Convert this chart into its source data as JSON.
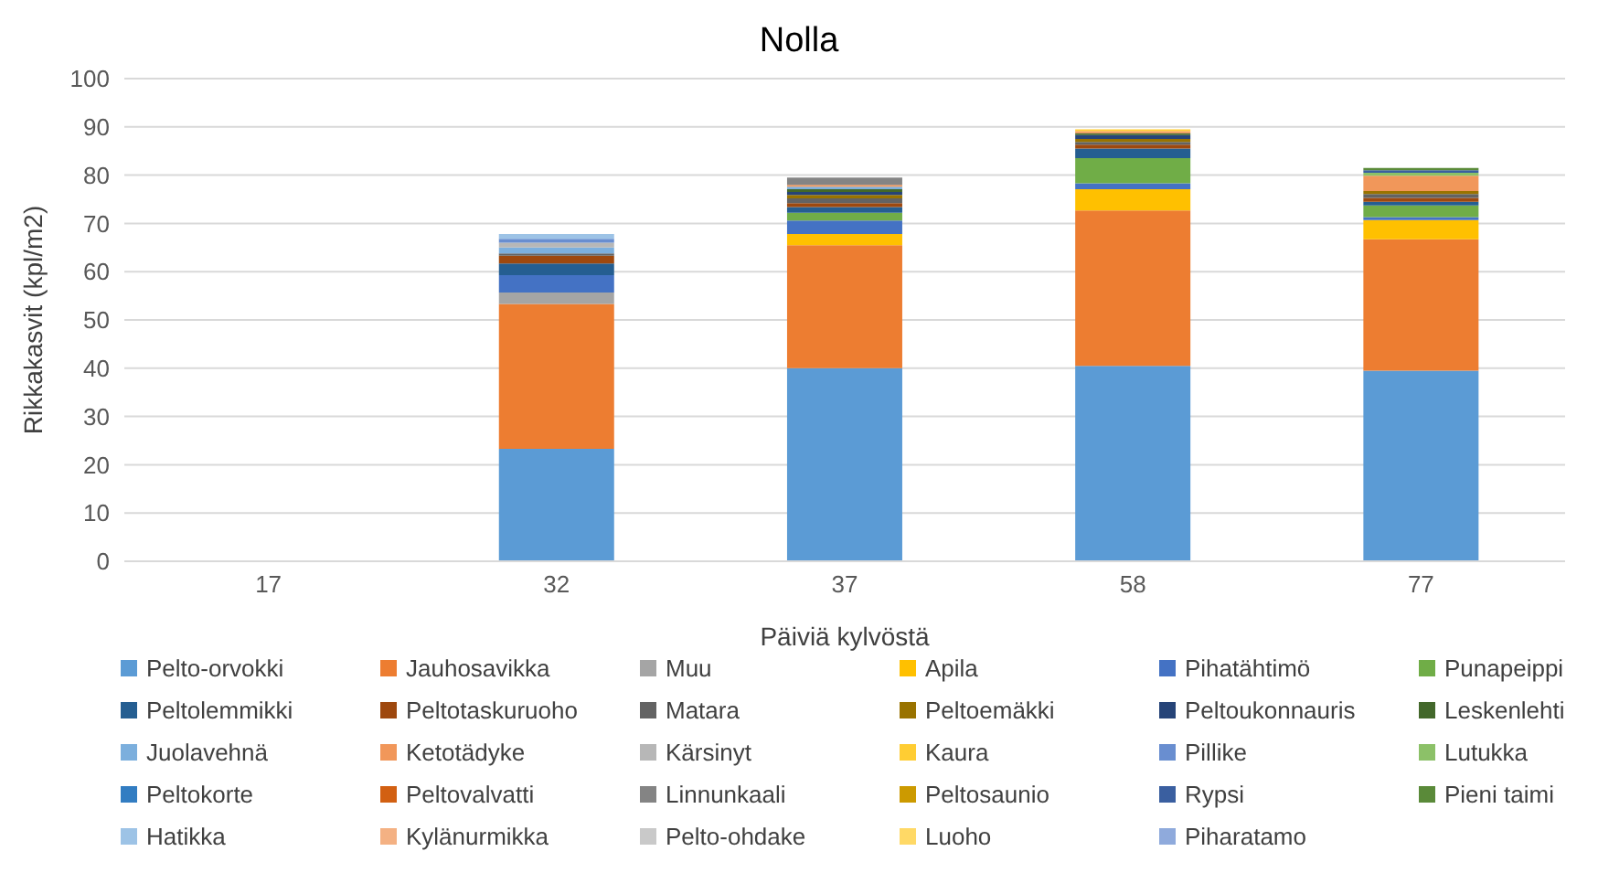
{
  "chart_data": {
    "type": "bar",
    "title": "Nolla",
    "xlabel": "Päiviä kylvöstä",
    "ylabel": "Rikkakasvit (kpl/m2)",
    "categories": [
      "17",
      "32",
      "37",
      "58",
      "77"
    ],
    "stacked": true,
    "ylim": [
      0,
      100
    ],
    "yticks": [
      0,
      10,
      20,
      30,
      40,
      50,
      60,
      70,
      80,
      90,
      100
    ],
    "grid": "y",
    "legend": "bottom",
    "series": [
      {
        "name": "Pelto-orvokki",
        "color": "#5b9bd5",
        "values": [
          null,
          23.3,
          40,
          40.5,
          39.5
        ]
      },
      {
        "name": "Jauhosavikka",
        "color": "#ed7d31",
        "values": [
          null,
          30,
          25.5,
          32.2,
          27.2
        ]
      },
      {
        "name": "Muu",
        "color": "#a5a5a5",
        "values": [
          null,
          2.4,
          null,
          null,
          null
        ]
      },
      {
        "name": "Apila",
        "color": "#ffc000",
        "values": [
          null,
          null,
          2.3,
          4.4,
          4
        ]
      },
      {
        "name": "Pihatähtimö",
        "color": "#4472c4",
        "values": [
          null,
          3.6,
          2.8,
          1.2,
          0.6
        ]
      },
      {
        "name": "Punapeippi",
        "color": "#70ad47",
        "values": [
          null,
          null,
          1.6,
          5.2,
          2.4
        ]
      },
      {
        "name": "Peltolemmikki",
        "color": "#255e91",
        "values": [
          null,
          2.4,
          1.2,
          2,
          0.8
        ]
      },
      {
        "name": "Peltotaskuruoho",
        "color": "#9e480e",
        "values": [
          null,
          1.6,
          0.8,
          0.8,
          0.8
        ]
      },
      {
        "name": "Matara",
        "color": "#636363",
        "values": [
          null,
          0.5,
          1,
          0.6,
          0.8
        ]
      },
      {
        "name": "Peltoemäkki",
        "color": "#997300",
        "values": [
          null,
          null,
          0.7,
          0.6,
          0.6
        ]
      },
      {
        "name": "Peltoukonnauris",
        "color": "#264478",
        "values": [
          null,
          null,
          0.6,
          0.8,
          null
        ]
      },
      {
        "name": "Leskenlehti",
        "color": "#43682b",
        "values": [
          null,
          null,
          0.6,
          0.4,
          null
        ]
      },
      {
        "name": "Juolavehnä",
        "color": "#7cafdd",
        "values": [
          null,
          1.2,
          0.5,
          null,
          null
        ]
      },
      {
        "name": "Ketotädyke",
        "color": "#f1975a",
        "values": [
          null,
          null,
          0.4,
          0.4,
          3.2
        ]
      },
      {
        "name": "Kärsinyt",
        "color": "#b7b7b7",
        "values": [
          null,
          1,
          null,
          null,
          null
        ]
      },
      {
        "name": "Kaura",
        "color": "#ffcd33",
        "values": [
          null,
          null,
          null,
          0.4,
          null
        ]
      },
      {
        "name": "Pillike",
        "color": "#698ed0",
        "values": [
          null,
          0.8,
          null,
          null,
          null
        ]
      },
      {
        "name": "Lutukka",
        "color": "#8cc168",
        "values": [
          null,
          null,
          null,
          null,
          0.6
        ]
      },
      {
        "name": "Peltokorte",
        "color": "#327dc2",
        "values": [
          null,
          null,
          null,
          null,
          null
        ]
      },
      {
        "name": "Peltovalvatti",
        "color": "#d26012",
        "values": [
          null,
          null,
          null,
          null,
          null
        ]
      },
      {
        "name": "Linnunkaali",
        "color": "#848484",
        "values": [
          null,
          null,
          1.5,
          null,
          null
        ]
      },
      {
        "name": "Peltosaunio",
        "color": "#cc9a00",
        "values": [
          null,
          null,
          null,
          null,
          null
        ]
      },
      {
        "name": "Rypsi",
        "color": "#3a5fa0",
        "values": [
          null,
          null,
          null,
          null,
          0.5
        ]
      },
      {
        "name": "Pieni taimi",
        "color": "#5a8a39",
        "values": [
          null,
          null,
          null,
          null,
          0.5
        ]
      },
      {
        "name": "Hatikka",
        "color": "#9dc3e6",
        "values": [
          null,
          1,
          null,
          null,
          null
        ]
      },
      {
        "name": "Kylänurmikka",
        "color": "#f4b183",
        "values": [
          null,
          null,
          null,
          null,
          null
        ]
      },
      {
        "name": "Pelto-ohdake",
        "color": "#c9c9c9",
        "values": [
          null,
          null,
          null,
          null,
          null
        ]
      },
      {
        "name": "Luoho",
        "color": "#ffd966",
        "values": [
          null,
          null,
          null,
          null,
          null
        ]
      },
      {
        "name": "Piharatamo",
        "color": "#8faadc",
        "values": [
          null,
          null,
          null,
          null,
          null
        ]
      }
    ]
  }
}
